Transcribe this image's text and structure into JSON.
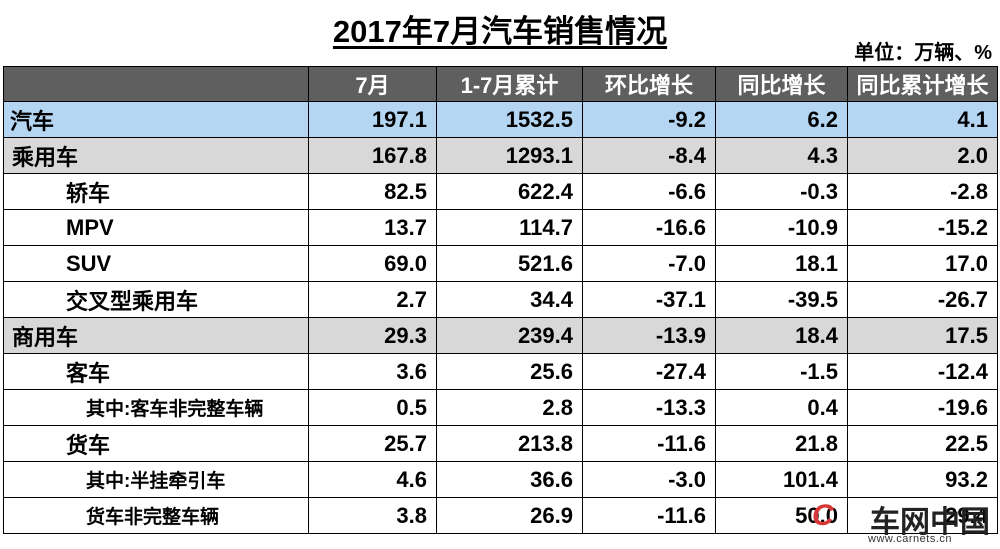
{
  "title": "2017年7月汽车销售情况",
  "unit": "单位：万辆、%",
  "columns": [
    "",
    "7月",
    "1-7月累计",
    "环比增长",
    "同比增长",
    "同比累计增长"
  ],
  "rows": [
    {
      "label": "汽车",
      "level": 0,
      "highlight": "blue",
      "values": [
        "197.1",
        "1532.5",
        "-9.2",
        "6.2",
        "4.1"
      ]
    },
    {
      "label": "乘用车",
      "level": 1,
      "highlight": "gray",
      "values": [
        "167.8",
        "1293.1",
        "-8.4",
        "4.3",
        "2.0"
      ]
    },
    {
      "label": "轿车",
      "level": 2,
      "highlight": "none",
      "values": [
        "82.5",
        "622.4",
        "-6.6",
        "-0.3",
        "-2.8"
      ]
    },
    {
      "label": "MPV",
      "level": 2,
      "highlight": "none",
      "values": [
        "13.7",
        "114.7",
        "-16.6",
        "-10.9",
        "-15.2"
      ]
    },
    {
      "label": "SUV",
      "level": 2,
      "highlight": "none",
      "values": [
        "69.0",
        "521.6",
        "-7.0",
        "18.1",
        "17.0"
      ]
    },
    {
      "label": "交叉型乘用车",
      "level": 2,
      "highlight": "none",
      "values": [
        "2.7",
        "34.4",
        "-37.1",
        "-39.5",
        "-26.7"
      ]
    },
    {
      "label": "商用车",
      "level": 1,
      "highlight": "gray",
      "values": [
        "29.3",
        "239.4",
        "-13.9",
        "18.4",
        "17.5"
      ]
    },
    {
      "label": "客车",
      "level": 2,
      "highlight": "none",
      "values": [
        "3.6",
        "25.6",
        "-27.4",
        "-1.5",
        "-12.4"
      ]
    },
    {
      "label": "其中:客车非完整车辆",
      "level": 3,
      "highlight": "none",
      "values": [
        "0.5",
        "2.8",
        "-13.3",
        "0.4",
        "-19.6"
      ]
    },
    {
      "label": "货车",
      "level": 2,
      "highlight": "none",
      "values": [
        "25.7",
        "213.8",
        "-11.6",
        "21.8",
        "22.5"
      ]
    },
    {
      "label": "其中:半挂牵引车",
      "level": 3,
      "highlight": "none",
      "values": [
        "4.6",
        "36.6",
        "-3.0",
        "101.4",
        "93.2"
      ]
    },
    {
      "label": "货车非完整车辆",
      "level": 3,
      "highlight": "none",
      "values": [
        "3.8",
        "26.9",
        "-11.6",
        "50.0",
        "29.4"
      ]
    }
  ],
  "watermark": {
    "name": "车网中国",
    "url": "www.carnets.cn",
    "logo_glyph": "C",
    "logo_color": "#d63838"
  },
  "colors": {
    "header_bg": "#5f5f5f",
    "row_blue": "#b5d6f3",
    "row_gray": "#d8d8d8"
  }
}
